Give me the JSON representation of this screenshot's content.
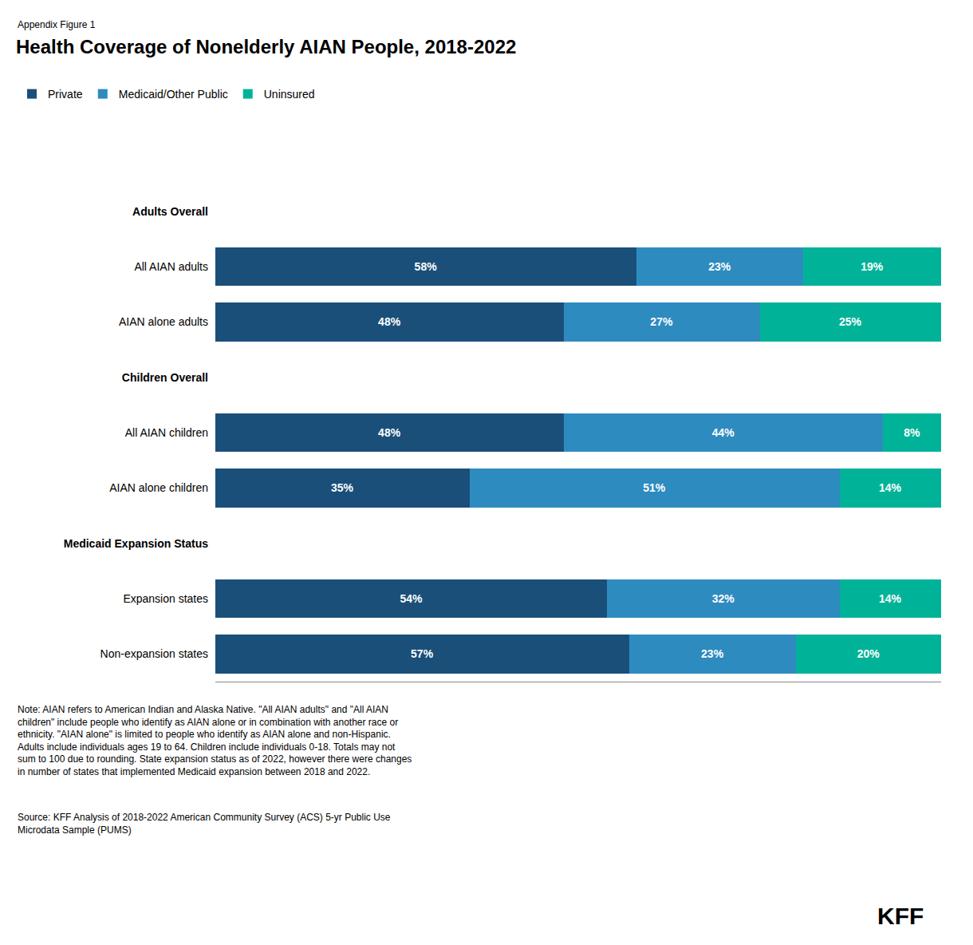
{
  "chart_data": {
    "type": "bar",
    "orientation": "horizontal",
    "stacked": true,
    "data_labels": true,
    "title": "Health Coverage of Nonelderly AIAN People, 2018-2022",
    "categories": [
      "Adults Overall",
      "All AIAN adults",
      "AIAN alone adults",
      "Children Overall",
      "All AIAN children",
      "AIAN alone children",
      "Medicaid Expansion Status",
      "Expansion states",
      "Non-expansion states"
    ],
    "series": [
      {
        "name": "Private",
        "color": "#1a4f7a",
        "values": [
          null,
          58,
          48,
          null,
          48,
          35,
          null,
          54,
          57
        ],
        "value_labels": [
          null,
          "58%",
          "48%",
          null,
          "48%",
          "35%",
          null,
          "54%",
          "57%"
        ]
      },
      {
        "name": "Medicaid/Other Public",
        "color": "#2e8bc0",
        "values": [
          null,
          23,
          27,
          null,
          44,
          51,
          null,
          32,
          23
        ],
        "value_labels": [
          null,
          "23%",
          "27%",
          null,
          "44%",
          "51%",
          null,
          "32%",
          "23%"
        ]
      },
      {
        "name": "Uninsured",
        "color": "#00b398",
        "values": [
          null,
          19,
          25,
          null,
          8,
          14,
          null,
          14,
          20
        ],
        "value_labels": [
          null,
          "19%",
          "25%",
          null,
          "8%",
          "14%",
          null,
          "14%",
          "20%"
        ]
      }
    ],
    "xlim": [
      0,
      100
    ],
    "tick_labels": "y",
    "grid": false,
    "legend": "top left",
    "annotations": [
      "Appendix Figure 1",
      "Note: AIAN refers to American Indian and Alaska Native. \"All AIAN adults\" and \"All AIAN\nchildren\" include people who identify as AIAN alone or in combination with another race or\nethnicity. \"AIAN alone\" is limited to people who identify as AIAN alone and non-Hispanic.\nAdults include individuals ages 19 to 64. Children include individuals 0-18. Totals may not\nsum to 100 due to rounding. State expansion status as of 2022, however there were changes\nin number of states that implemented Medicaid expansion between 2018 and 2022.",
      "Source: KFF Analysis of 2018-2022 American Community Survey (ACS) 5-yr Public Use\nMicrodata Sample (PUMS)",
      "KFF"
    ]
  }
}
